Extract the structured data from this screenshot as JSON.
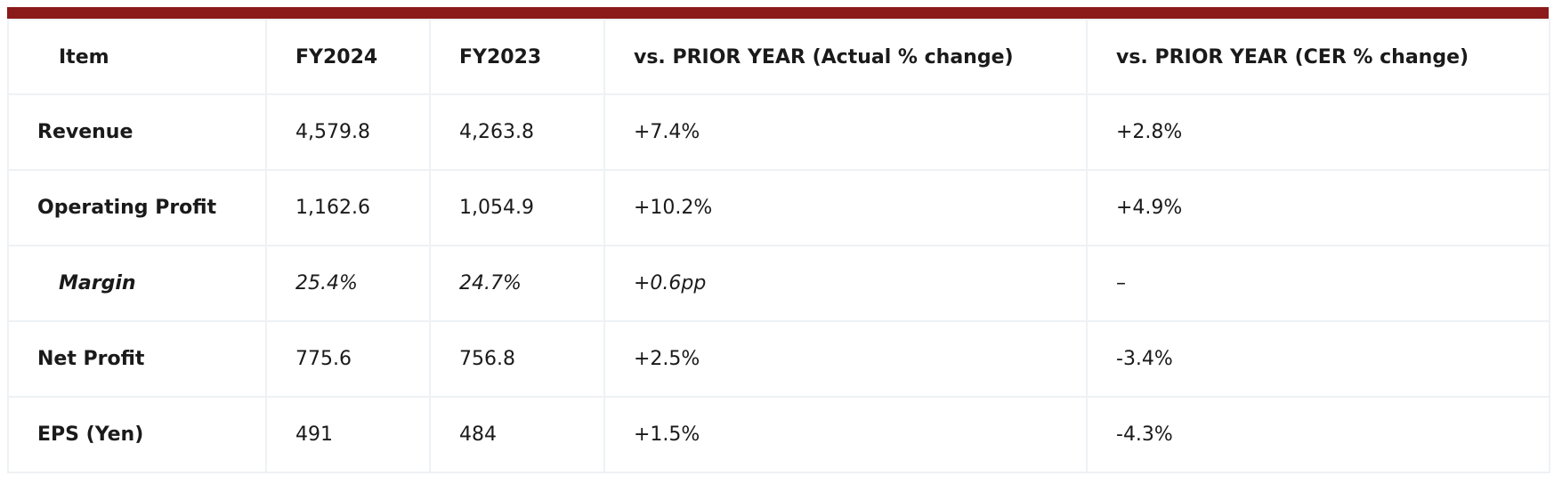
{
  "table": {
    "headers": [
      "Item",
      "FY2024",
      "FY2023",
      "vs. PRIOR YEAR (Actual % change)",
      "vs. PRIOR YEAR (CER % change)"
    ],
    "rows": [
      {
        "item": "Revenue",
        "fy2024": "4,579.8",
        "fy2023": "4,263.8",
        "actual_change": "+7.4%",
        "cer_change": "+2.8%"
      },
      {
        "item": "Operating Profit",
        "fy2024": "1,162.6",
        "fy2023": "1,054.9",
        "actual_change": "+10.2%",
        "cer_change": "+4.9%"
      },
      {
        "item": "Margin",
        "fy2024": "25.4%",
        "fy2023": "24.7%",
        "actual_change": "+0.6pp",
        "cer_change": "–"
      },
      {
        "item": "Net Profit",
        "fy2024": "775.6",
        "fy2023": "756.8",
        "actual_change": "+2.5%",
        "cer_change": "-3.4%"
      },
      {
        "item": "EPS (Yen)",
        "fy2024": "491",
        "fy2023": "484",
        "actual_change": "+1.5%",
        "cer_change": "-4.3%"
      }
    ]
  },
  "colors": {
    "accent_bar": "#8b1a1a",
    "grid_line": "#eef2f4",
    "text": "#1a1a1a"
  }
}
